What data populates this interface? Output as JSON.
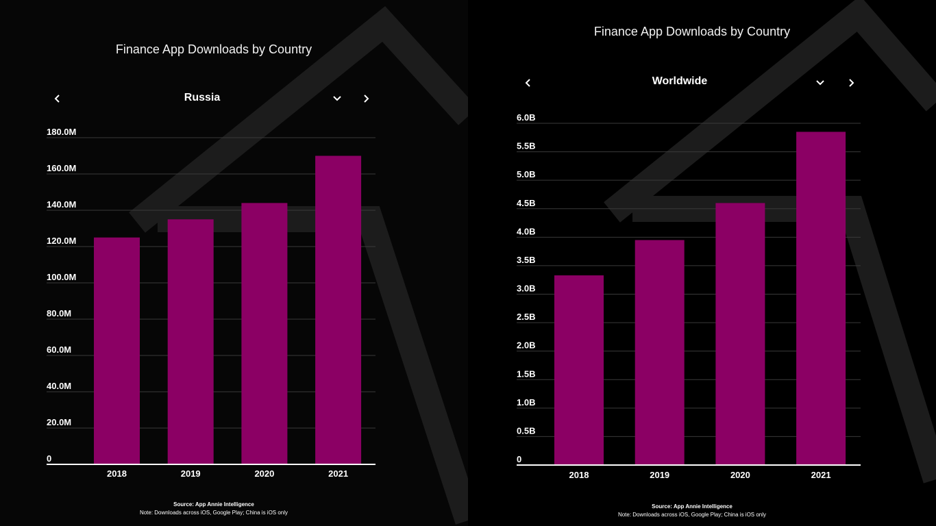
{
  "colors": {
    "bar": "#8b0064",
    "grid": "#3a3a3a",
    "axis": "#ffffff",
    "bg_shape": "#1c1c1c"
  },
  "icons": {
    "prev": "chevron-left-icon",
    "next": "chevron-right-icon",
    "dropdown": "chevron-down-icon"
  },
  "chart_data": [
    {
      "type": "bar",
      "title": "Finance App Downloads by Country",
      "selected_country": "Russia",
      "categories": [
        "2018",
        "2019",
        "2020",
        "2021"
      ],
      "values": [
        125000000,
        135000000,
        144000000,
        170000000
      ],
      "yticks": [
        "0",
        "20.0M",
        "40.0M",
        "60.0M",
        "80.0M",
        "100.0M",
        "120.0M",
        "140.0M",
        "160.0M",
        "180.0M"
      ],
      "ylim": [
        0,
        180000000
      ],
      "grid": true,
      "source": "Source: App Annie Intelligence",
      "note": "Note: Downloads across iOS, Google Play; China is iOS only"
    },
    {
      "type": "bar",
      "title": "Finance App Downloads by Country",
      "selected_country": "Worldwide",
      "categories": [
        "2018",
        "2019",
        "2020",
        "2021"
      ],
      "values": [
        3330000000,
        3950000000,
        4600000000,
        5850000000
      ],
      "yticks": [
        "0",
        "0.5B",
        "1.0B",
        "1.5B",
        "2.0B",
        "2.5B",
        "3.0B",
        "3.5B",
        "4.0B",
        "4.5B",
        "5.0B",
        "5.5B",
        "6.0B"
      ],
      "ylim": [
        0,
        6000000000
      ],
      "grid": true,
      "source": "Source: App Annie Intelligence",
      "note": "Note: Downloads across iOS, Google Play; China is iOS only"
    }
  ]
}
